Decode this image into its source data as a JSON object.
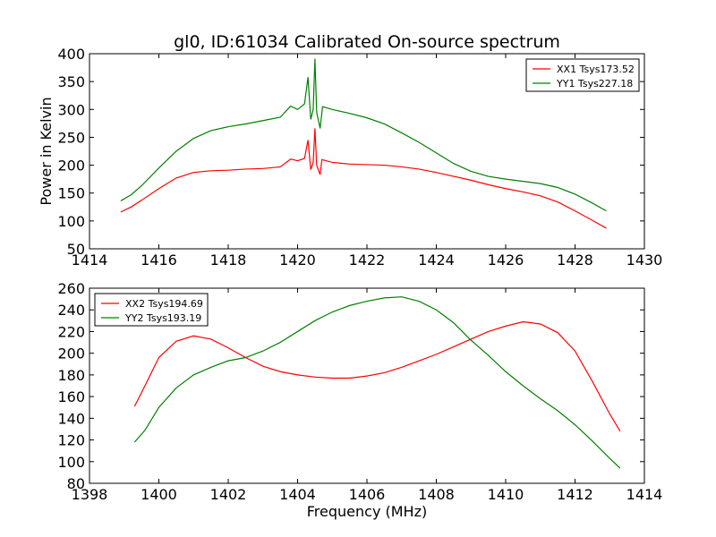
{
  "chart_data": [
    {
      "type": "line",
      "title": "gl0, ID:61034 Calibrated On-source spectrum",
      "xlabel": "",
      "ylabel": "Power in Kelvin",
      "xlim": [
        1414,
        1430
      ],
      "ylim": [
        50,
        400
      ],
      "xticks": [
        "1414",
        "1416",
        "1418",
        "1420",
        "1422",
        "1424",
        "1426",
        "1428",
        "1430"
      ],
      "yticks": [
        "50",
        "100",
        "150",
        "200",
        "250",
        "300",
        "350",
        "400"
      ],
      "legend_position": "top-right",
      "series": [
        {
          "name": "XX1 Tsys173.52",
          "color": "#ff0000",
          "points": [
            [
              1414.9,
              116
            ],
            [
              1415.2,
              125
            ],
            [
              1415.5,
              137
            ],
            [
              1416.0,
              158
            ],
            [
              1416.5,
              177
            ],
            [
              1417.0,
              187
            ],
            [
              1417.5,
              190
            ],
            [
              1418.0,
              191
            ],
            [
              1418.5,
              193
            ],
            [
              1419.0,
              194
            ],
            [
              1419.5,
              197
            ],
            [
              1419.8,
              211
            ],
            [
              1420.0,
              208
            ],
            [
              1420.2,
              212
            ],
            [
              1420.3,
              245
            ],
            [
              1420.38,
              192
            ],
            [
              1420.45,
              205
            ],
            [
              1420.5,
              266
            ],
            [
              1420.55,
              200
            ],
            [
              1420.65,
              183
            ],
            [
              1420.7,
              210
            ],
            [
              1421.0,
              205
            ],
            [
              1421.5,
              202
            ],
            [
              1422.0,
              201
            ],
            [
              1422.5,
              200
            ],
            [
              1423.0,
              197
            ],
            [
              1423.5,
              193
            ],
            [
              1424.0,
              187
            ],
            [
              1424.5,
              180
            ],
            [
              1425.0,
              173
            ],
            [
              1425.5,
              165
            ],
            [
              1426.0,
              158
            ],
            [
              1426.5,
              152
            ],
            [
              1427.0,
              145
            ],
            [
              1427.5,
              134
            ],
            [
              1428.0,
              118
            ],
            [
              1428.5,
              101
            ],
            [
              1428.9,
              87
            ]
          ]
        },
        {
          "name": "YY1 Tsys227.18",
          "color": "#008000",
          "points": [
            [
              1414.9,
              136
            ],
            [
              1415.2,
              147
            ],
            [
              1415.5,
              163
            ],
            [
              1416.0,
              195
            ],
            [
              1416.5,
              225
            ],
            [
              1417.0,
              248
            ],
            [
              1417.5,
              262
            ],
            [
              1418.0,
              269
            ],
            [
              1418.5,
              274
            ],
            [
              1419.0,
              280
            ],
            [
              1419.5,
              286
            ],
            [
              1419.8,
              306
            ],
            [
              1420.0,
              300
            ],
            [
              1420.2,
              310
            ],
            [
              1420.3,
              358
            ],
            [
              1420.38,
              282
            ],
            [
              1420.45,
              300
            ],
            [
              1420.5,
              391
            ],
            [
              1420.55,
              295
            ],
            [
              1420.65,
              266
            ],
            [
              1420.72,
              305
            ],
            [
              1421.0,
              300
            ],
            [
              1421.5,
              293
            ],
            [
              1422.0,
              285
            ],
            [
              1422.5,
              274
            ],
            [
              1423.0,
              258
            ],
            [
              1423.5,
              241
            ],
            [
              1424.0,
              222
            ],
            [
              1424.5,
              203
            ],
            [
              1425.0,
              189
            ],
            [
              1425.5,
              180
            ],
            [
              1426.0,
              175
            ],
            [
              1426.5,
              171
            ],
            [
              1427.0,
              167
            ],
            [
              1427.5,
              160
            ],
            [
              1428.0,
              148
            ],
            [
              1428.5,
              132
            ],
            [
              1428.9,
              118
            ]
          ]
        }
      ]
    },
    {
      "type": "line",
      "title": "",
      "xlabel": "Frequency (MHz)",
      "ylabel": "",
      "xlim": [
        1398,
        1414
      ],
      "ylim": [
        80,
        260
      ],
      "xticks": [
        "1398",
        "1400",
        "1402",
        "1404",
        "1406",
        "1408",
        "1410",
        "1412",
        "1414"
      ],
      "yticks": [
        "80",
        "100",
        "120",
        "140",
        "160",
        "180",
        "200",
        "220",
        "240",
        "260"
      ],
      "legend_position": "top-left",
      "series": [
        {
          "name": "XX2 Tsys194.69",
          "color": "#ff0000",
          "points": [
            [
              1399.3,
              151
            ],
            [
              1399.6,
              170
            ],
            [
              1400.0,
              196
            ],
            [
              1400.5,
              211
            ],
            [
              1401.0,
              216
            ],
            [
              1401.5,
              213
            ],
            [
              1402.0,
              205
            ],
            [
              1402.5,
              196
            ],
            [
              1403.0,
              188
            ],
            [
              1403.5,
              183
            ],
            [
              1404.0,
              180
            ],
            [
              1404.5,
              178
            ],
            [
              1405.0,
              177
            ],
            [
              1405.5,
              177
            ],
            [
              1406.0,
              179
            ],
            [
              1406.5,
              182
            ],
            [
              1407.0,
              187
            ],
            [
              1407.5,
              193
            ],
            [
              1408.0,
              199
            ],
            [
              1408.5,
              206
            ],
            [
              1409.0,
              213
            ],
            [
              1409.5,
              220
            ],
            [
              1410.0,
              225
            ],
            [
              1410.5,
              229
            ],
            [
              1411.0,
              227
            ],
            [
              1411.5,
              219
            ],
            [
              1412.0,
              202
            ],
            [
              1412.5,
              174
            ],
            [
              1413.0,
              144
            ],
            [
              1413.3,
              128
            ]
          ]
        },
        {
          "name": "YY2 Tsys193.19",
          "color": "#008000",
          "points": [
            [
              1399.3,
              118
            ],
            [
              1399.6,
              129
            ],
            [
              1400.0,
              150
            ],
            [
              1400.5,
              168
            ],
            [
              1401.0,
              180
            ],
            [
              1401.5,
              187
            ],
            [
              1402.0,
              193
            ],
            [
              1402.5,
              196
            ],
            [
              1403.0,
              202
            ],
            [
              1403.5,
              210
            ],
            [
              1404.0,
              220
            ],
            [
              1404.5,
              230
            ],
            [
              1405.0,
              238
            ],
            [
              1405.5,
              244
            ],
            [
              1406.0,
              248
            ],
            [
              1406.5,
              251
            ],
            [
              1407.0,
              252
            ],
            [
              1407.5,
              248
            ],
            [
              1408.0,
              240
            ],
            [
              1408.5,
              228
            ],
            [
              1409.0,
              212
            ],
            [
              1409.5,
              198
            ],
            [
              1410.0,
              183
            ],
            [
              1410.5,
              170
            ],
            [
              1411.0,
              158
            ],
            [
              1411.5,
              147
            ],
            [
              1412.0,
              134
            ],
            [
              1412.5,
              119
            ],
            [
              1413.0,
              103
            ],
            [
              1413.3,
              94
            ]
          ]
        }
      ]
    }
  ]
}
